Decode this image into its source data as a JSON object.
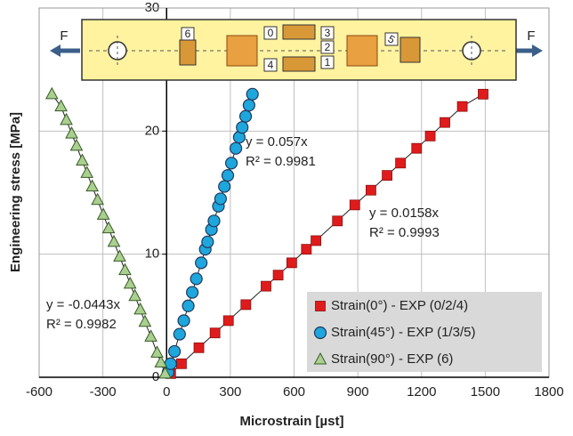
{
  "chart_data": {
    "type": "scatter",
    "xlabel": "Microstrain [µst]",
    "ylabel": "Engineering stress [MPa]",
    "xlim": [
      -600,
      1800
    ],
    "xticks": [
      -600,
      -300,
      0,
      300,
      600,
      900,
      1200,
      1500,
      1800
    ],
    "ylim": [
      0,
      30
    ],
    "yticks": [
      0,
      10,
      20,
      30
    ],
    "grid": true,
    "legend": "lower right",
    "series": [
      {
        "name": "Strain(0°) - EXP (0/2/4)",
        "color": "#e01b1b",
        "marker": "square",
        "x": [
          19,
          70,
          152,
          228,
          291,
          373,
          468,
          525,
          589,
          658,
          703,
          804,
          886,
          962,
          1038,
          1101,
          1177,
          1241,
          1310,
          1392,
          1490
        ],
        "values": [
          0.3,
          1.1,
          2.4,
          3.6,
          4.6,
          5.9,
          7.4,
          8.3,
          9.3,
          10.4,
          11.1,
          12.7,
          14.0,
          15.2,
          16.4,
          17.4,
          18.6,
          19.6,
          20.7,
          22.0,
          23.0
        ]
      },
      {
        "name": "Strain(45°) - EXP (1/3/5)",
        "color": "#1ea6dd",
        "marker": "circle",
        "x": [
          7,
          19,
          37,
          61,
          81,
          102,
          121,
          140,
          163,
          182,
          193,
          211,
          223,
          244,
          254,
          272,
          288,
          305,
          326,
          342,
          356,
          372,
          388,
          404
        ],
        "values": [
          0.4,
          1.1,
          2.1,
          3.5,
          4.6,
          5.8,
          6.9,
          8.0,
          9.3,
          10.4,
          11.0,
          12.0,
          12.7,
          13.9,
          14.5,
          15.5,
          16.4,
          17.4,
          18.6,
          19.5,
          20.3,
          21.2,
          22.1,
          23.0
        ]
      },
      {
        "name": "Strain(90°) - EXP (6)",
        "color": "#a9d08e",
        "marker": "triangle",
        "x": [
          -7,
          -27,
          -45,
          -74,
          -102,
          -124,
          -149,
          -172,
          -196,
          -221,
          -248,
          -273,
          -298,
          -325,
          -350,
          -375,
          -397,
          -424,
          -447,
          -472,
          -497,
          -540
        ],
        "values": [
          0.3,
          1.2,
          2.0,
          3.3,
          4.5,
          5.5,
          6.6,
          7.6,
          8.7,
          9.8,
          11.0,
          12.1,
          13.2,
          14.4,
          15.5,
          16.6,
          17.6,
          18.8,
          19.8,
          20.9,
          22.0,
          23.0
        ]
      }
    ],
    "annotations": [
      [
        "y = 0.0158x",
        "R² = 0.9993"
      ],
      [
        "y = 0.057x",
        "R² = 0.9981"
      ],
      [
        "y = -0.0443x",
        "R² = 0.9982"
      ]
    ],
    "inset_labels": [
      "F",
      "6",
      "0",
      "3",
      "2",
      "4",
      "1",
      "5",
      "F"
    ]
  }
}
